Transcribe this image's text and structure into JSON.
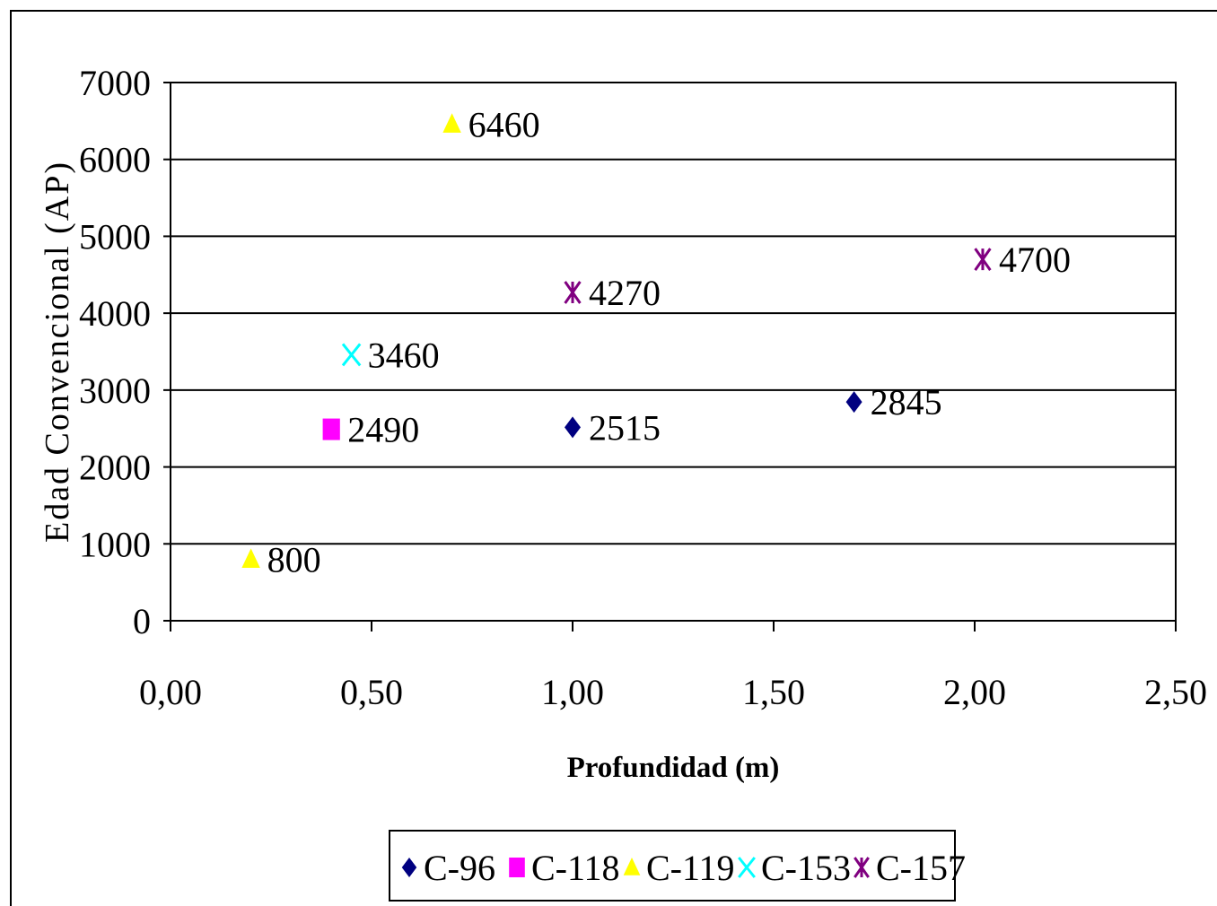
{
  "chart_data": {
    "type": "scatter",
    "title": "",
    "xlabel": "Profundidad (m)",
    "ylabel": "Edad Convencional (AP)",
    "xlim": [
      0,
      2.5
    ],
    "ylim": [
      0,
      7000
    ],
    "xticks": [
      0,
      0.5,
      1.0,
      1.5,
      2.0,
      2.5
    ],
    "xtick_labels": [
      "0,00",
      "0,50",
      "1,00",
      "1,50",
      "2,00",
      "2,50"
    ],
    "yticks": [
      0,
      1000,
      2000,
      3000,
      4000,
      5000,
      6000,
      7000
    ],
    "ytick_labels": [
      "0",
      "1000",
      "2000",
      "3000",
      "4000",
      "5000",
      "6000",
      "7000"
    ],
    "grid": "horizontal",
    "legend_position": "bottom",
    "series": [
      {
        "name": "C-96",
        "marker": "diamond",
        "color": "#000080",
        "points": [
          {
            "x": 1.0,
            "y": 2515,
            "label": "2515"
          },
          {
            "x": 1.7,
            "y": 2845,
            "label": "2845"
          }
        ]
      },
      {
        "name": "C-118",
        "marker": "square",
        "color": "#FF00FF",
        "points": [
          {
            "x": 0.4,
            "y": 2490,
            "label": "2490"
          }
        ]
      },
      {
        "name": "C-119",
        "marker": "triangle",
        "color": "#FFFF00",
        "points": [
          {
            "x": 0.2,
            "y": 800,
            "label": "800"
          },
          {
            "x": 0.7,
            "y": 6460,
            "label": "6460"
          }
        ]
      },
      {
        "name": "C-153",
        "marker": "x",
        "color": "#00FFFF",
        "points": [
          {
            "x": 0.45,
            "y": 3460,
            "label": "3460"
          }
        ]
      },
      {
        "name": "C-157",
        "marker": "star",
        "color": "#800080",
        "points": [
          {
            "x": 1.0,
            "y": 4270,
            "label": "4270"
          },
          {
            "x": 2.02,
            "y": 4700,
            "label": "4700"
          }
        ]
      }
    ]
  }
}
